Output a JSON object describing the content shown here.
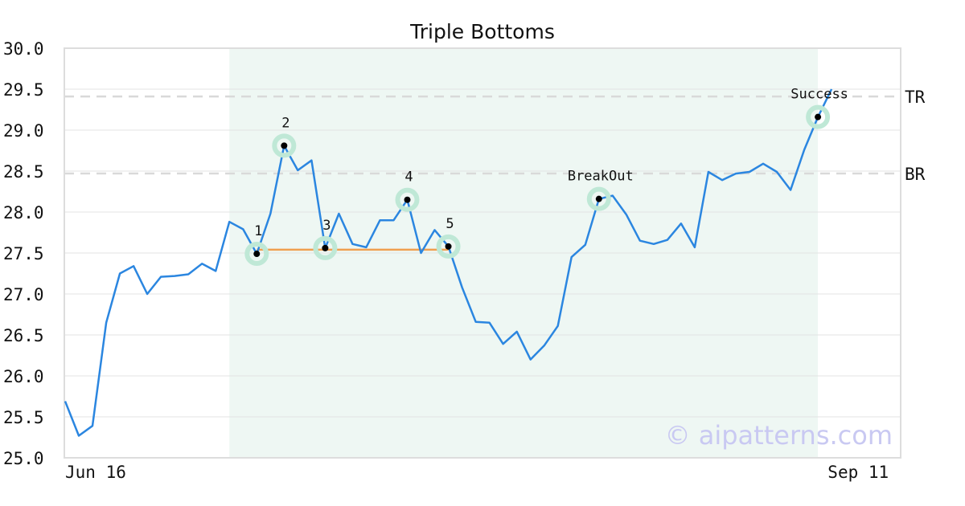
{
  "chart_data": {
    "type": "line",
    "title": "Triple Bottoms",
    "xlabel": "",
    "ylabel": "",
    "ylim": [
      25.0,
      30.0
    ],
    "yticks": [
      "25.0",
      "25.5",
      "26.0",
      "26.5",
      "27.0",
      "27.5",
      "28.0",
      "28.5",
      "29.0",
      "29.5",
      "30.0"
    ],
    "x_tick_labels": [
      {
        "index": 0,
        "label": "Jun 16"
      },
      {
        "index": 58,
        "label": "Sep 11"
      }
    ],
    "grid": true,
    "colors": {
      "line": "#2b86e0",
      "support": "#f0a050",
      "highlight_region": "#eef7f3",
      "marker_halo": "#bfe8d6",
      "level_line": "#d9d9d9",
      "watermark": "#c9c9f2"
    },
    "series": [
      {
        "values": [
          25.69,
          25.27,
          25.39,
          26.65,
          27.25,
          27.34,
          27.0,
          27.21,
          27.22,
          27.24,
          27.37,
          27.28,
          27.88,
          27.79,
          27.49,
          27.98,
          28.81,
          28.51,
          28.63,
          27.56,
          27.98,
          27.61,
          27.57,
          27.9,
          27.9,
          28.15,
          27.5,
          27.78,
          27.58,
          27.08,
          26.66,
          26.65,
          26.39,
          26.54,
          26.2,
          26.37,
          26.61,
          27.45,
          27.6,
          28.16,
          28.2,
          27.97,
          27.65,
          27.61,
          27.66,
          27.86,
          27.57,
          28.49,
          28.39,
          28.47,
          28.49,
          28.59,
          28.49,
          28.27,
          28.76,
          29.16,
          29.5
        ]
      }
    ],
    "highlight_region": {
      "from_index": 12,
      "to_index": 55
    },
    "support_line": {
      "from_index": 14,
      "to_index": 28,
      "value": 27.54
    },
    "levels": [
      {
        "label": "TR",
        "value": 29.41
      },
      {
        "label": "BR",
        "value": 28.47
      }
    ],
    "annotations": [
      {
        "label": "1",
        "index": 14,
        "value": 27.49,
        "label_pos": "above"
      },
      {
        "label": "2",
        "index": 16,
        "value": 28.81,
        "label_pos": "above"
      },
      {
        "label": "3",
        "index": 19,
        "value": 27.56,
        "label_pos": "above"
      },
      {
        "label": "4",
        "index": 25,
        "value": 28.15,
        "label_pos": "above"
      },
      {
        "label": "5",
        "index": 28,
        "value": 27.58,
        "label_pos": "above"
      },
      {
        "label": "BreakOut",
        "index": 39,
        "value": 28.16,
        "label_pos": "above"
      },
      {
        "label": "Success",
        "index": 55,
        "value": 29.16,
        "label_pos": "above"
      }
    ],
    "watermark": "© aipatterns.com"
  }
}
